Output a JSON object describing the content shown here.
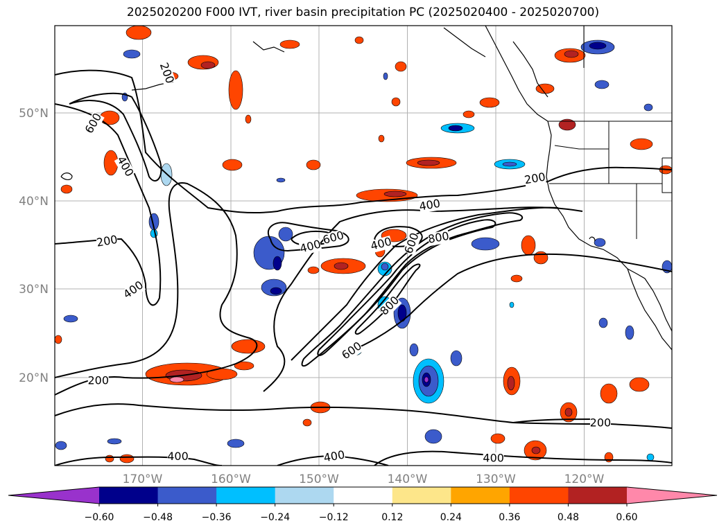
{
  "title": "2025020200 F000 IVT, river basin precipitation PC (2025020400 - 2025020700)",
  "map": {
    "lon_labels": [
      "170°W",
      "160°W",
      "150°W",
      "140°W",
      "130°W",
      "120°W"
    ],
    "lat_labels": [
      "50°N",
      "40°N",
      "30°N",
      "20°N"
    ],
    "contour_labels": [
      {
        "text": "200",
        "lon": -167.3,
        "lat": 54.5,
        "rot": 70
      },
      {
        "text": "600",
        "lon": -175.5,
        "lat": 48.8,
        "rot": -60
      },
      {
        "text": "400",
        "lon": -172,
        "lat": 43.9,
        "rot": 60
      },
      {
        "text": "200",
        "lon": -174,
        "lat": 35.4,
        "rot": -10
      },
      {
        "text": "400",
        "lon": -171,
        "lat": 29.9,
        "rot": -35
      },
      {
        "text": "200",
        "lon": -175,
        "lat": 19.6,
        "rot": 0
      },
      {
        "text": "400",
        "lon": -166,
        "lat": 11.0,
        "rot": 0
      },
      {
        "text": "400",
        "lon": -151,
        "lat": 34.8,
        "rot": -15
      },
      {
        "text": "600",
        "lon": -148.4,
        "lat": 35.8,
        "rot": -15
      },
      {
        "text": "400",
        "lon": -143,
        "lat": 35.1,
        "rot": -15
      },
      {
        "text": "600",
        "lon": -139.5,
        "lat": 35.2,
        "rot": -70
      },
      {
        "text": "800",
        "lon": -136.5,
        "lat": 35.8,
        "rot": -10
      },
      {
        "text": "400",
        "lon": -137.5,
        "lat": 39.5,
        "rot": -10
      },
      {
        "text": "800",
        "lon": -142,
        "lat": 28.1,
        "rot": -45
      },
      {
        "text": "600",
        "lon": -146.3,
        "lat": 23.0,
        "rot": -35
      },
      {
        "text": "400",
        "lon": -148.3,
        "lat": 11.0,
        "rot": -10
      },
      {
        "text": "200",
        "lon": -125.6,
        "lat": 42.5,
        "rot": -10
      },
      {
        "text": "200",
        "lon": -118.2,
        "lat": 14.8,
        "rot": 0
      },
      {
        "text": "400",
        "lon": -130.3,
        "lat": 10.8,
        "rot": 0
      }
    ]
  },
  "colorbar": {
    "tick_labels": [
      "−0.60",
      "−0.48",
      "−0.36",
      "−0.24",
      "−0.12",
      "0.12",
      "0.24",
      "0.36",
      "0.48",
      "0.60"
    ],
    "levels": [
      -0.72,
      -0.6,
      -0.48,
      -0.36,
      -0.24,
      -0.12,
      0.12,
      0.24,
      0.36,
      0.48,
      0.6,
      0.72
    ],
    "colors": [
      "#9932cc",
      "#00008b",
      "#3b5bcb",
      "#00bfff",
      "#add8f0",
      "#ffffff",
      "#fde68a",
      "#ffa500",
      "#ff4500",
      "#b22222",
      "#ff88aa"
    ]
  }
}
